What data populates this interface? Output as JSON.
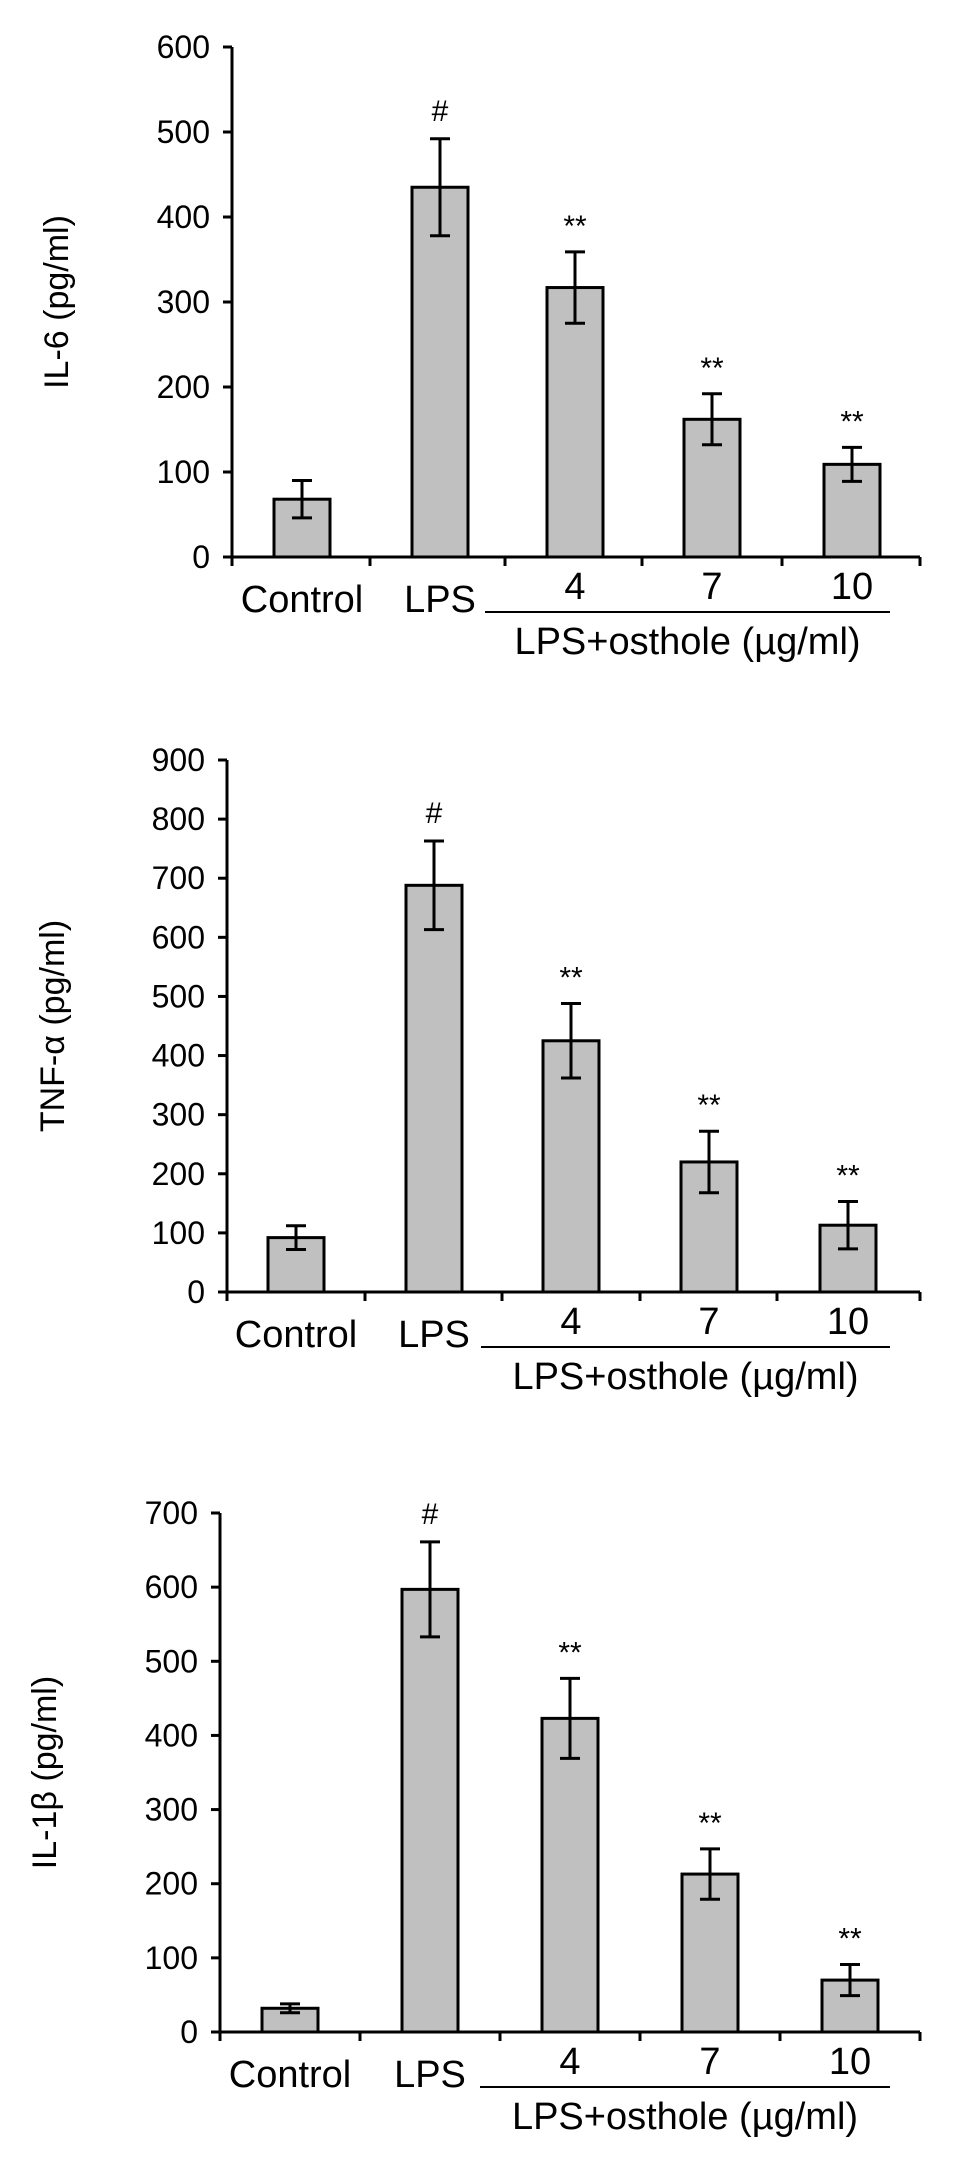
{
  "chart_data": [
    {
      "type": "bar",
      "ylabel": "IL-6  (pg/ml)",
      "categories": [
        "Control",
        "LPS",
        "4",
        "7",
        "10"
      ],
      "group_label": "LPS+osthole (µg/ml)",
      "values": [
        68,
        435,
        317,
        162,
        109
      ],
      "errors": [
        22,
        57,
        42,
        30,
        20
      ],
      "significance": [
        "",
        "#",
        "**",
        "**",
        "**"
      ],
      "ylim": [
        0,
        600
      ],
      "yticks": [
        0,
        100,
        200,
        300,
        400,
        500,
        600
      ],
      "bar_color": "#c0c0c0",
      "grid": false
    },
    {
      "type": "bar",
      "ylabel": "TNF-α  (pg/ml)",
      "categories": [
        "Control",
        "LPS",
        "4",
        "7",
        "10"
      ],
      "group_label": "LPS+osthole (µg/ml)",
      "values": [
        92,
        688,
        425,
        220,
        113
      ],
      "errors": [
        20,
        75,
        63,
        52,
        40
      ],
      "significance": [
        "",
        "#",
        "**",
        "**",
        "**"
      ],
      "ylim": [
        0,
        900
      ],
      "yticks": [
        0,
        100,
        200,
        300,
        400,
        500,
        600,
        700,
        800,
        900
      ],
      "bar_color": "#c0c0c0",
      "grid": false
    },
    {
      "type": "bar",
      "ylabel": "IL-1β  (pg/ml)",
      "categories": [
        "Control",
        "LPS",
        "4",
        "7",
        "10"
      ],
      "group_label": "LPS+osthole (µg/ml)",
      "values": [
        32,
        597,
        423,
        213,
        70
      ],
      "errors": [
        6,
        64,
        54,
        34,
        21
      ],
      "significance": [
        "",
        "#",
        "**",
        "**",
        "**"
      ],
      "ylim": [
        0,
        700
      ],
      "yticks": [
        0,
        100,
        200,
        300,
        400,
        500,
        600,
        700
      ],
      "bar_color": "#c0c0c0",
      "grid": false
    }
  ]
}
